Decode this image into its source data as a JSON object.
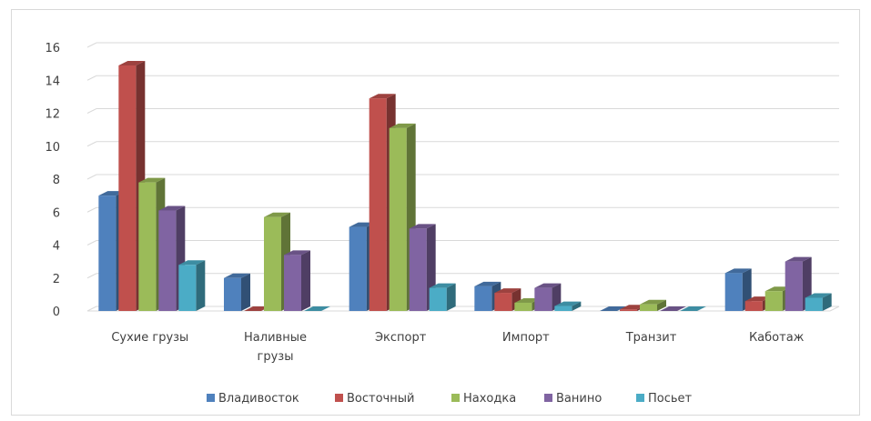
{
  "chart_data": {
    "type": "bar",
    "title": "",
    "xlabel": "",
    "ylabel": "",
    "categories": [
      [
        "Сухие грузы"
      ],
      [
        "Наливные",
        "грузы"
      ],
      [
        "Экспорт"
      ],
      [
        "Импорт"
      ],
      [
        "Транзит"
      ],
      [
        "Каботаж"
      ]
    ],
    "series": [
      {
        "name": "Владивосток",
        "color": "#4F81BD",
        "values": [
          7.0,
          2.0,
          5.1,
          1.5,
          0.0,
          2.3
        ]
      },
      {
        "name": "Восточный",
        "color": "#C0504D",
        "values": [
          14.9,
          0.0,
          12.9,
          1.1,
          0.1,
          0.6
        ]
      },
      {
        "name": "Находка",
        "color": "#9BBB59",
        "values": [
          7.8,
          5.7,
          11.1,
          0.5,
          0.4,
          1.2
        ]
      },
      {
        "name": "Ванино",
        "color": "#8064A2",
        "values": [
          6.1,
          3.4,
          5.0,
          1.4,
          0.0,
          3.0
        ]
      },
      {
        "name": "Посьет",
        "color": "#4BACC6",
        "values": [
          2.8,
          0.0,
          1.4,
          0.3,
          0.0,
          0.8
        ]
      }
    ],
    "ylim": [
      0,
      16
    ],
    "yticks": [
      0,
      2,
      4,
      6,
      8,
      10,
      12,
      14,
      16
    ],
    "grid": true,
    "legend_position": "bottom"
  }
}
